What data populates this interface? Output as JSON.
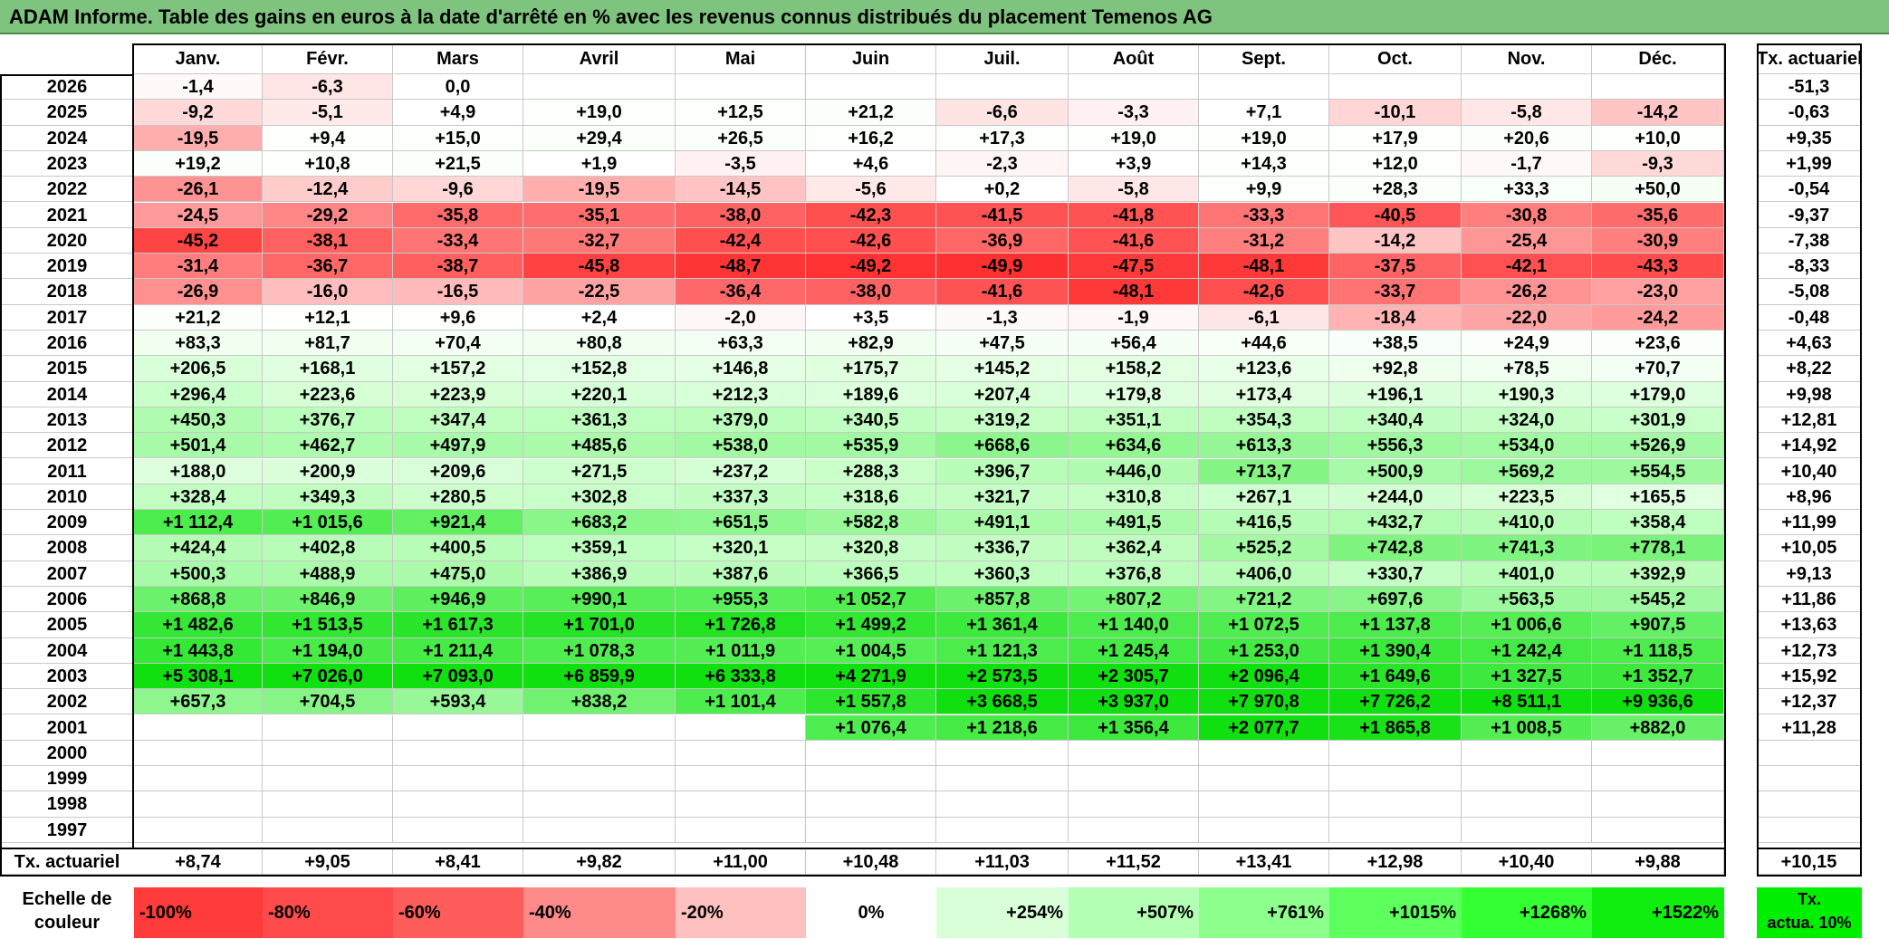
{
  "title": "ADAM Informe. Table des gains en euros à la date d'arrêté en % avec les revenus connus distribués du placement Temenos AG",
  "months": [
    "Janv.",
    "Févr.",
    "Mars",
    "Avril",
    "Mai",
    "Juin",
    "Juil.",
    "Août",
    "Sept.",
    "Oct.",
    "Nov.",
    "Déc."
  ],
  "tx_header": "Tx. actuariel",
  "rows": [
    {
      "year": "2026",
      "values": [
        "-1,4",
        "-6,3",
        "0,0",
        "",
        "",
        "",
        "",
        "",
        "",
        "",
        "",
        ""
      ],
      "tx": "-51,3"
    },
    {
      "year": "2025",
      "values": [
        "-9,2",
        "-5,1",
        "+4,9",
        "+19,0",
        "+12,5",
        "+21,2",
        "-6,6",
        "-3,3",
        "+7,1",
        "-10,1",
        "-5,8",
        "-14,2"
      ],
      "tx": "-0,63"
    },
    {
      "year": "2024",
      "values": [
        "-19,5",
        "+9,4",
        "+15,0",
        "+29,4",
        "+26,5",
        "+16,2",
        "+17,3",
        "+19,0",
        "+19,0",
        "+17,9",
        "+20,6",
        "+10,0"
      ],
      "tx": "+9,35"
    },
    {
      "year": "2023",
      "values": [
        "+19,2",
        "+10,8",
        "+21,5",
        "+1,9",
        "-3,5",
        "+4,6",
        "-2,3",
        "+3,9",
        "+14,3",
        "+12,0",
        "-1,7",
        "-9,3"
      ],
      "tx": "+1,99"
    },
    {
      "year": "2022",
      "values": [
        "-26,1",
        "-12,4",
        "-9,6",
        "-19,5",
        "-14,5",
        "-5,6",
        "+0,2",
        "-5,8",
        "+9,9",
        "+28,3",
        "+33,3",
        "+50,0"
      ],
      "tx": "-0,54"
    },
    {
      "year": "2021",
      "values": [
        "-24,5",
        "-29,2",
        "-35,8",
        "-35,1",
        "-38,0",
        "-42,3",
        "-41,5",
        "-41,8",
        "-33,3",
        "-40,5",
        "-30,8",
        "-35,6"
      ],
      "tx": "-9,37"
    },
    {
      "year": "2020",
      "values": [
        "-45,2",
        "-38,1",
        "-33,4",
        "-32,7",
        "-42,4",
        "-42,6",
        "-36,9",
        "-41,6",
        "-31,2",
        "-14,2",
        "-25,4",
        "-30,9"
      ],
      "tx": "-7,38"
    },
    {
      "year": "2019",
      "values": [
        "-31,4",
        "-36,7",
        "-38,7",
        "-45,8",
        "-48,7",
        "-49,2",
        "-49,9",
        "-47,5",
        "-48,1",
        "-37,5",
        "-42,1",
        "-43,3"
      ],
      "tx": "-8,33"
    },
    {
      "year": "2018",
      "values": [
        "-26,9",
        "-16,0",
        "-16,5",
        "-22,5",
        "-36,4",
        "-38,0",
        "-41,6",
        "-48,1",
        "-42,6",
        "-33,7",
        "-26,2",
        "-23,0"
      ],
      "tx": "-5,08"
    },
    {
      "year": "2017",
      "values": [
        "+21,2",
        "+12,1",
        "+9,6",
        "+2,4",
        "-2,0",
        "+3,5",
        "-1,3",
        "-1,9",
        "-6,1",
        "-18,4",
        "-22,0",
        "-24,2"
      ],
      "tx": "-0,48"
    },
    {
      "year": "2016",
      "values": [
        "+83,3",
        "+81,7",
        "+70,4",
        "+80,8",
        "+63,3",
        "+82,9",
        "+47,5",
        "+56,4",
        "+44,6",
        "+38,5",
        "+24,9",
        "+23,6"
      ],
      "tx": "+4,63"
    },
    {
      "year": "2015",
      "values": [
        "+206,5",
        "+168,1",
        "+157,2",
        "+152,8",
        "+146,8",
        "+175,7",
        "+145,2",
        "+158,2",
        "+123,6",
        "+92,8",
        "+78,5",
        "+70,7"
      ],
      "tx": "+8,22"
    },
    {
      "year": "2014",
      "values": [
        "+296,4",
        "+223,6",
        "+223,9",
        "+220,1",
        "+212,3",
        "+189,6",
        "+207,4",
        "+179,8",
        "+173,4",
        "+196,1",
        "+190,3",
        "+179,0"
      ],
      "tx": "+9,98"
    },
    {
      "year": "2013",
      "values": [
        "+450,3",
        "+376,7",
        "+347,4",
        "+361,3",
        "+379,0",
        "+340,5",
        "+319,2",
        "+351,1",
        "+354,3",
        "+340,4",
        "+324,0",
        "+301,9"
      ],
      "tx": "+12,81"
    },
    {
      "year": "2012",
      "values": [
        "+501,4",
        "+462,7",
        "+497,9",
        "+485,6",
        "+538,0",
        "+535,9",
        "+668,6",
        "+634,6",
        "+613,3",
        "+556,3",
        "+534,0",
        "+526,9"
      ],
      "tx": "+14,92"
    },
    {
      "year": "2011",
      "values": [
        "+188,0",
        "+200,9",
        "+209,6",
        "+271,5",
        "+237,2",
        "+288,3",
        "+396,7",
        "+446,0",
        "+713,7",
        "+500,9",
        "+569,2",
        "+554,5"
      ],
      "tx": "+10,40"
    },
    {
      "year": "2010",
      "values": [
        "+328,4",
        "+349,3",
        "+280,5",
        "+302,8",
        "+337,3",
        "+318,6",
        "+321,7",
        "+310,8",
        "+267,1",
        "+244,0",
        "+223,5",
        "+165,5"
      ],
      "tx": "+8,96"
    },
    {
      "year": "2009",
      "values": [
        "+1 112,4",
        "+1 015,6",
        "+921,4",
        "+683,2",
        "+651,5",
        "+582,8",
        "+491,1",
        "+491,5",
        "+416,5",
        "+432,7",
        "+410,0",
        "+358,4"
      ],
      "tx": "+11,99"
    },
    {
      "year": "2008",
      "values": [
        "+424,4",
        "+402,8",
        "+400,5",
        "+359,1",
        "+320,1",
        "+320,8",
        "+336,7",
        "+362,4",
        "+525,2",
        "+742,8",
        "+741,3",
        "+778,1"
      ],
      "tx": "+10,05"
    },
    {
      "year": "2007",
      "values": [
        "+500,3",
        "+488,9",
        "+475,0",
        "+386,9",
        "+387,6",
        "+366,5",
        "+360,3",
        "+376,8",
        "+406,0",
        "+330,7",
        "+401,0",
        "+392,9"
      ],
      "tx": "+9,13"
    },
    {
      "year": "2006",
      "values": [
        "+868,8",
        "+846,9",
        "+946,9",
        "+990,1",
        "+955,3",
        "+1 052,7",
        "+857,8",
        "+807,2",
        "+721,2",
        "+697,6",
        "+563,5",
        "+545,2"
      ],
      "tx": "+11,86"
    },
    {
      "year": "2005",
      "values": [
        "+1 482,6",
        "+1 513,5",
        "+1 617,3",
        "+1 701,0",
        "+1 726,8",
        "+1 499,2",
        "+1 361,4",
        "+1 140,0",
        "+1 072,5",
        "+1 137,8",
        "+1 006,6",
        "+907,5"
      ],
      "tx": "+13,63"
    },
    {
      "year": "2004",
      "values": [
        "+1 443,8",
        "+1 194,0",
        "+1 211,4",
        "+1 078,3",
        "+1 011,9",
        "+1 004,5",
        "+1 121,3",
        "+1 245,4",
        "+1 253,0",
        "+1 390,4",
        "+1 242,4",
        "+1 118,5"
      ],
      "tx": "+12,73"
    },
    {
      "year": "2003",
      "values": [
        "+5 308,1",
        "+7 026,0",
        "+7 093,0",
        "+6 859,9",
        "+6 333,8",
        "+4 271,9",
        "+2 573,5",
        "+2 305,7",
        "+2 096,4",
        "+1 649,6",
        "+1 327,5",
        "+1 352,7"
      ],
      "tx": "+15,92"
    },
    {
      "year": "2002",
      "values": [
        "+657,3",
        "+704,5",
        "+593,4",
        "+838,2",
        "+1 101,4",
        "+1 557,8",
        "+3 668,5",
        "+3 937,0",
        "+7 970,8",
        "+7 726,2",
        "+8 511,1",
        "+9 936,6"
      ],
      "tx": "+12,37"
    },
    {
      "year": "2001",
      "values": [
        "",
        "",
        "",
        "",
        "",
        "+1 076,4",
        "+1 218,6",
        "+1 356,4",
        "+2 077,7",
        "+1 865,8",
        "+1 008,5",
        "+882,0"
      ],
      "tx": "+11,28"
    },
    {
      "year": "2000",
      "values": [
        "",
        "",
        "",
        "",
        "",
        "",
        "",
        "",
        "",
        "",
        "",
        ""
      ],
      "tx": ""
    },
    {
      "year": "1999",
      "values": [
        "",
        "",
        "",
        "",
        "",
        "",
        "",
        "",
        "",
        "",
        "",
        ""
      ],
      "tx": ""
    },
    {
      "year": "1998",
      "values": [
        "",
        "",
        "",
        "",
        "",
        "",
        "",
        "",
        "",
        "",
        "",
        ""
      ],
      "tx": ""
    },
    {
      "year": "1997",
      "values": [
        "",
        "",
        "",
        "",
        "",
        "",
        "",
        "",
        "",
        "",
        "",
        ""
      ],
      "tx": ""
    }
  ],
  "footer": {
    "label": "Tx. actuariel",
    "values": [
      "+8,74",
      "+9,05",
      "+8,41",
      "+9,82",
      "+11,00",
      "+10,48",
      "+11,03",
      "+11,52",
      "+13,41",
      "+12,98",
      "+10,40",
      "+9,88"
    ],
    "tx": "+10,15"
  },
  "scale": {
    "label_line1": "Echelle de",
    "label_line2": "couleur",
    "items": [
      "-100%",
      "-80%",
      "-60%",
      "-40%",
      "-20%",
      "0%",
      "+254%",
      "+507%",
      "+761%",
      "+1015%",
      "+1268%",
      "+1522%"
    ],
    "colors": [
      "#ff3b3b",
      "#ff4b4b",
      "#ff5c5c",
      "#ff8a8a",
      "#ffc0c0",
      "#ffffff",
      "#d9ffd9",
      "#b3ffb3",
      "#8cff8c",
      "#5cff5c",
      "#33ff33",
      "#10ee10"
    ],
    "final_line1": "Tx.",
    "final_line2": "actua. 10%",
    "final_color": "#00ee00"
  }
}
